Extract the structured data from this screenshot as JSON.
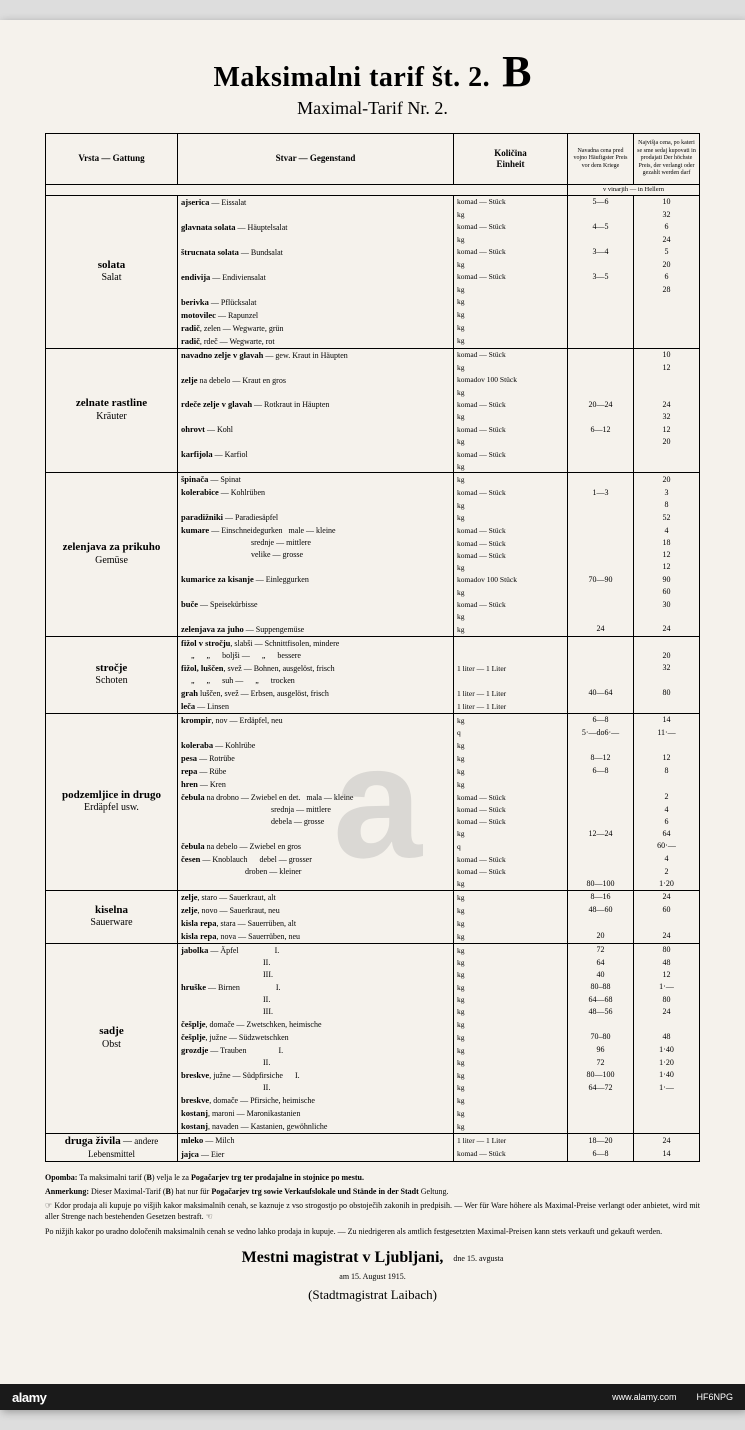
{
  "title": "Maksimalni tarif št. 2.",
  "title_letter": "B",
  "subtitle": "Maximal-Tarif Nr. 2.",
  "columns": {
    "c1": "Vrsta — Gattung",
    "c2": "Stvar — Gegenstand",
    "c3": "Količina\nEinheit",
    "c4": "Navadna cena pred vojno Häufigster Preis vor dem Kriege",
    "c5": "Najvišja cena, po kateri se sme sedaj kupovati in prodajati Der höchste Preis, der verlangt oder gezahlt werden darf",
    "price_unit": "v vinarjih — in Hellern"
  },
  "sections": [
    {
      "cat_sl": "solata",
      "cat_de": "Salat",
      "rows": [
        {
          "item": "<b>ajserica</b> — Eissalat",
          "unit": "komad — Stück",
          "p1": "5—6",
          "p2": "10"
        },
        {
          "item": "",
          "unit": "kg",
          "p1": "",
          "p2": "32"
        },
        {
          "item": "<b>glavnata solata</b> — Häuptelsalat",
          "unit": "komad — Stück",
          "p1": "4—5",
          "p2": "6"
        },
        {
          "item": "",
          "unit": "kg",
          "p1": "",
          "p2": "24"
        },
        {
          "item": "<b>štrucnata solata</b> — Bundsalat",
          "unit": "komad — Stück",
          "p1": "3—4",
          "p2": "5"
        },
        {
          "item": "",
          "unit": "kg",
          "p1": "",
          "p2": "20"
        },
        {
          "item": "<b>endivija</b> — Endiviensalat",
          "unit": "komad — Stück",
          "p1": "3—5",
          "p2": "6"
        },
        {
          "item": "",
          "unit": "kg",
          "p1": "",
          "p2": "28"
        },
        {
          "item": "<b>berivka</b> — Pflücksalat",
          "unit": "kg",
          "p1": "",
          "p2": ""
        },
        {
          "item": "<b>motovilec</b> — Rapunzel",
          "unit": "kg",
          "p1": "",
          "p2": ""
        },
        {
          "item": "<b>radič</b>, zelen — Wegwarte, grün",
          "unit": "kg",
          "p1": "",
          "p2": ""
        },
        {
          "item": "<b>radič</b>, rdeč — Wegwarte, rot",
          "unit": "kg",
          "p1": "",
          "p2": ""
        }
      ]
    },
    {
      "cat_sl": "zelnate rastline",
      "cat_de": "Kräuter",
      "rows": [
        {
          "item": "<b>navadno zelje v glavah</b> — gew. Kraut in Häupten",
          "unit": "komad — Stück",
          "p1": "",
          "p2": "10"
        },
        {
          "item": "",
          "unit": "kg",
          "p1": "",
          "p2": "12"
        },
        {
          "item": "<b>zelje</b> na debelo — Kraut en gros",
          "unit": "komadov 100 Stück",
          "p1": "",
          "p2": ""
        },
        {
          "item": "",
          "unit": "kg",
          "p1": "",
          "p2": ""
        },
        {
          "item": "<b>rdeče zelje v glavah</b> — Rotkraut in Häupten",
          "unit": "komad — Stück",
          "p1": "20—24",
          "p2": "24"
        },
        {
          "item": "",
          "unit": "kg",
          "p1": "",
          "p2": "32"
        },
        {
          "item": "<b>ohrovt</b> — Kohl",
          "unit": "komad — Stück",
          "p1": "6—12",
          "p2": "12"
        },
        {
          "item": "",
          "unit": "kg",
          "p1": "",
          "p2": "20"
        },
        {
          "item": "<b>karfijola</b> — Karfiol",
          "unit": "komad — Stück",
          "p1": "",
          "p2": ""
        },
        {
          "item": "",
          "unit": "kg",
          "p1": "",
          "p2": ""
        }
      ]
    },
    {
      "cat_sl": "zelenjava za prikuho",
      "cat_de": "Gemüse",
      "rows": [
        {
          "item": "<b>špinača</b> — Spinat",
          "unit": "kg",
          "p1": "",
          "p2": "20"
        },
        {
          "item": "<b>kolerabice</b> — Kohlrüben",
          "unit": "komad — Stück",
          "p1": "1—3",
          "p2": "3"
        },
        {
          "item": "",
          "unit": "kg",
          "p1": "",
          "p2": "8"
        },
        {
          "item": "<b>paradižniki</b> — Paradiesäpfel",
          "unit": "kg",
          "p1": "",
          "p2": "52"
        },
        {
          "item": "<b>kumare</b> — Einschneidegurken &nbsp; male — kleine",
          "unit": "komad — Stück",
          "p1": "",
          "p2": "4"
        },
        {
          "item": "&nbsp;&nbsp;&nbsp;&nbsp;&nbsp;&nbsp;&nbsp;&nbsp;&nbsp;&nbsp;&nbsp;&nbsp;&nbsp;&nbsp;&nbsp;&nbsp;&nbsp;&nbsp;&nbsp;&nbsp;&nbsp;&nbsp;&nbsp;&nbsp;&nbsp;&nbsp;&nbsp;&nbsp;&nbsp;&nbsp;&nbsp;&nbsp;&nbsp;&nbsp; srednje — mittlere",
          "unit": "komad — Stück",
          "p1": "",
          "p2": "18"
        },
        {
          "item": "&nbsp;&nbsp;&nbsp;&nbsp;&nbsp;&nbsp;&nbsp;&nbsp;&nbsp;&nbsp;&nbsp;&nbsp;&nbsp;&nbsp;&nbsp;&nbsp;&nbsp;&nbsp;&nbsp;&nbsp;&nbsp;&nbsp;&nbsp;&nbsp;&nbsp;&nbsp;&nbsp;&nbsp;&nbsp;&nbsp;&nbsp;&nbsp;&nbsp;&nbsp; velike — grosse",
          "unit": "komad — Stück",
          "p1": "",
          "p2": "12"
        },
        {
          "item": "",
          "unit": "kg",
          "p1": "",
          "p2": "12"
        },
        {
          "item": "<b>kumarice za kisanje</b> — Einleggurken",
          "unit": "komadov 100 Stück",
          "p1": "70—90",
          "p2": "90"
        },
        {
          "item": "",
          "unit": "kg",
          "p1": "",
          "p2": "60"
        },
        {
          "item": "<b>buče</b> — Speisekürbisse",
          "unit": "komad — Stück",
          "p1": "",
          "p2": "30"
        },
        {
          "item": "",
          "unit": "kg",
          "p1": "",
          "p2": ""
        },
        {
          "item": "<b>zelenjava za juho</b> — Suppengemüse",
          "unit": "kg",
          "p1": "24",
          "p2": "24"
        }
      ]
    },
    {
      "cat_sl": "stročje",
      "cat_de": "Schoten",
      "rows": [
        {
          "item": "<b>fižol v stročju</b>, slabši — Schnittfisolen, mindere",
          "unit": "",
          "p1": "",
          "p2": ""
        },
        {
          "item": "&nbsp;&nbsp;&nbsp;&nbsp; „ &nbsp;&nbsp;&nbsp;&nbsp; „ &nbsp;&nbsp;&nbsp;&nbsp; boljši — &nbsp;&nbsp;&nbsp;&nbsp; „ &nbsp;&nbsp;&nbsp;&nbsp; bessere",
          "unit": "",
          "p1": "",
          "p2": "20"
        },
        {
          "item": "<b>fižol, luščen</b>, svež — Bohnen, ausgelöst, frisch",
          "unit": "1 liter — 1 Liter",
          "p1": "",
          "p2": "32"
        },
        {
          "item": "&nbsp;&nbsp;&nbsp;&nbsp; „ &nbsp;&nbsp;&nbsp;&nbsp; „ &nbsp;&nbsp;&nbsp;&nbsp; suh — &nbsp;&nbsp;&nbsp;&nbsp; „ &nbsp;&nbsp;&nbsp;&nbsp; trocken",
          "unit": "",
          "p1": "",
          "p2": ""
        },
        {
          "item": "<b>grah</b> luščen, svež — Erbsen, ausgelöst, frisch",
          "unit": "1 liter — 1 Liter",
          "p1": "40—64",
          "p2": "80"
        },
        {
          "item": "<b>leča</b> — Linsen",
          "unit": "1 liter — 1 Liter",
          "p1": "",
          "p2": ""
        }
      ]
    },
    {
      "cat_sl": "podzemljice in drugo",
      "cat_de": "Erdäpfel usw.",
      "rows": [
        {
          "item": "<b>krompir</b>, nov — Erdäpfel, neu",
          "unit": "kg",
          "p1": "6—8",
          "p2": "14"
        },
        {
          "item": "",
          "unit": "q",
          "p1": "5·—do6·—",
          "p2": "11·—"
        },
        {
          "item": "<b>koleraba</b> — Kohlrübe",
          "unit": "kg",
          "p1": "",
          "p2": ""
        },
        {
          "item": "<b>pesa</b> — Rotrübe",
          "unit": "kg",
          "p1": "8—12",
          "p2": "12"
        },
        {
          "item": "<b>repa</b> — Rübe",
          "unit": "kg",
          "p1": "6—8",
          "p2": "8"
        },
        {
          "item": "<b>hren</b> — Kren",
          "unit": "kg",
          "p1": "",
          "p2": ""
        },
        {
          "item": "<b>čebula</b> na drobno — Zwiebel en det. &nbsp; mala — kleine",
          "unit": "komad — Stück",
          "p1": "",
          "p2": "2"
        },
        {
          "item": "&nbsp;&nbsp;&nbsp;&nbsp;&nbsp;&nbsp;&nbsp;&nbsp;&nbsp;&nbsp;&nbsp;&nbsp;&nbsp;&nbsp;&nbsp;&nbsp;&nbsp;&nbsp;&nbsp;&nbsp;&nbsp;&nbsp;&nbsp;&nbsp;&nbsp;&nbsp;&nbsp;&nbsp;&nbsp;&nbsp;&nbsp;&nbsp;&nbsp;&nbsp;&nbsp;&nbsp;&nbsp;&nbsp;&nbsp;&nbsp;&nbsp;&nbsp;&nbsp;&nbsp; srednja — mittlere",
          "unit": "komad — Stück",
          "p1": "",
          "p2": "4"
        },
        {
          "item": "&nbsp;&nbsp;&nbsp;&nbsp;&nbsp;&nbsp;&nbsp;&nbsp;&nbsp;&nbsp;&nbsp;&nbsp;&nbsp;&nbsp;&nbsp;&nbsp;&nbsp;&nbsp;&nbsp;&nbsp;&nbsp;&nbsp;&nbsp;&nbsp;&nbsp;&nbsp;&nbsp;&nbsp;&nbsp;&nbsp;&nbsp;&nbsp;&nbsp;&nbsp;&nbsp;&nbsp;&nbsp;&nbsp;&nbsp;&nbsp;&nbsp;&nbsp;&nbsp;&nbsp; debela — grosse",
          "unit": "komad — Stück",
          "p1": "",
          "p2": "6"
        },
        {
          "item": "",
          "unit": "kg",
          "p1": "12—24",
          "p2": "64"
        },
        {
          "item": "<b>čebula</b> na debelo — Zwiebel en gros",
          "unit": "q",
          "p1": "",
          "p2": "60·—"
        },
        {
          "item": "<b>česen</b> — Knoblauch &nbsp;&nbsp;&nbsp;&nbsp; debel — grosser",
          "unit": "komad — Stück",
          "p1": "",
          "p2": "4"
        },
        {
          "item": "&nbsp;&nbsp;&nbsp;&nbsp;&nbsp;&nbsp;&nbsp;&nbsp;&nbsp;&nbsp;&nbsp;&nbsp;&nbsp;&nbsp;&nbsp;&nbsp;&nbsp;&nbsp;&nbsp;&nbsp;&nbsp;&nbsp;&nbsp;&nbsp;&nbsp;&nbsp;&nbsp;&nbsp;&nbsp;&nbsp;&nbsp; droben — kleiner",
          "unit": "komad — Stück",
          "p1": "",
          "p2": "2"
        },
        {
          "item": "",
          "unit": "kg",
          "p1": "80—100",
          "p2": "1·20"
        }
      ]
    },
    {
      "cat_sl": "kiselna",
      "cat_de": "Sauerware",
      "rows": [
        {
          "item": "<b>zelje</b>, staro — Sauerkraut, alt",
          "unit": "kg",
          "p1": "8—16",
          "p2": "24"
        },
        {
          "item": "<b>zelje</b>, novo — Sauerkraut, neu",
          "unit": "kg",
          "p1": "48—60",
          "p2": "60"
        },
        {
          "item": "<b>kisla repa</b>, stara — Sauerrüben, alt",
          "unit": "kg",
          "p1": "",
          "p2": ""
        },
        {
          "item": "<b>kisla repa</b>, nova — Sauerrüben, neu",
          "unit": "kg",
          "p1": "20",
          "p2": "24"
        }
      ]
    },
    {
      "cat_sl": "sadje",
      "cat_de": "Obst",
      "rows": [
        {
          "item": "<b>jabolka</b> — Äpfel &nbsp;&nbsp;&nbsp;&nbsp;&nbsp;&nbsp;&nbsp;&nbsp;&nbsp;&nbsp;&nbsp;&nbsp;&nbsp;&nbsp;&nbsp;&nbsp; I.",
          "unit": "kg",
          "p1": "72",
          "p2": "80"
        },
        {
          "item": "&nbsp;&nbsp;&nbsp;&nbsp;&nbsp;&nbsp;&nbsp;&nbsp;&nbsp;&nbsp;&nbsp;&nbsp;&nbsp;&nbsp;&nbsp;&nbsp;&nbsp;&nbsp;&nbsp;&nbsp;&nbsp;&nbsp;&nbsp;&nbsp;&nbsp;&nbsp;&nbsp;&nbsp;&nbsp;&nbsp;&nbsp;&nbsp;&nbsp;&nbsp;&nbsp;&nbsp;&nbsp;&nbsp;&nbsp;&nbsp; II.",
          "unit": "kg",
          "p1": "64",
          "p2": "48"
        },
        {
          "item": "&nbsp;&nbsp;&nbsp;&nbsp;&nbsp;&nbsp;&nbsp;&nbsp;&nbsp;&nbsp;&nbsp;&nbsp;&nbsp;&nbsp;&nbsp;&nbsp;&nbsp;&nbsp;&nbsp;&nbsp;&nbsp;&nbsp;&nbsp;&nbsp;&nbsp;&nbsp;&nbsp;&nbsp;&nbsp;&nbsp;&nbsp;&nbsp;&nbsp;&nbsp;&nbsp;&nbsp;&nbsp;&nbsp;&nbsp;&nbsp; III.",
          "unit": "kg",
          "p1": "40",
          "p2": "12"
        },
        {
          "item": "<b>hruške</b> — Birnen &nbsp;&nbsp;&nbsp;&nbsp;&nbsp;&nbsp;&nbsp;&nbsp;&nbsp;&nbsp;&nbsp;&nbsp;&nbsp;&nbsp;&nbsp;&nbsp; I.",
          "unit": "kg",
          "p1": "80–88",
          "p2": "1·—"
        },
        {
          "item": "&nbsp;&nbsp;&nbsp;&nbsp;&nbsp;&nbsp;&nbsp;&nbsp;&nbsp;&nbsp;&nbsp;&nbsp;&nbsp;&nbsp;&nbsp;&nbsp;&nbsp;&nbsp;&nbsp;&nbsp;&nbsp;&nbsp;&nbsp;&nbsp;&nbsp;&nbsp;&nbsp;&nbsp;&nbsp;&nbsp;&nbsp;&nbsp;&nbsp;&nbsp;&nbsp;&nbsp;&nbsp;&nbsp;&nbsp;&nbsp; II.",
          "unit": "kg",
          "p1": "64—68",
          "p2": "80"
        },
        {
          "item": "&nbsp;&nbsp;&nbsp;&nbsp;&nbsp;&nbsp;&nbsp;&nbsp;&nbsp;&nbsp;&nbsp;&nbsp;&nbsp;&nbsp;&nbsp;&nbsp;&nbsp;&nbsp;&nbsp;&nbsp;&nbsp;&nbsp;&nbsp;&nbsp;&nbsp;&nbsp;&nbsp;&nbsp;&nbsp;&nbsp;&nbsp;&nbsp;&nbsp;&nbsp;&nbsp;&nbsp;&nbsp;&nbsp;&nbsp;&nbsp; III.",
          "unit": "kg",
          "p1": "48—56",
          "p2": "24"
        },
        {
          "item": "<b>češplje</b>, domače — Zwetschken, heimische",
          "unit": "kg",
          "p1": "",
          "p2": ""
        },
        {
          "item": "<b>češplje</b>, južne — Südzwetschken",
          "unit": "kg",
          "p1": "70–80",
          "p2": "48"
        },
        {
          "item": "<b>grozdje</b> — Trauben &nbsp;&nbsp;&nbsp;&nbsp;&nbsp;&nbsp;&nbsp;&nbsp;&nbsp;&nbsp;&nbsp;&nbsp;&nbsp;&nbsp; I.",
          "unit": "kg",
          "p1": "96",
          "p2": "1·40"
        },
        {
          "item": "&nbsp;&nbsp;&nbsp;&nbsp;&nbsp;&nbsp;&nbsp;&nbsp;&nbsp;&nbsp;&nbsp;&nbsp;&nbsp;&nbsp;&nbsp;&nbsp;&nbsp;&nbsp;&nbsp;&nbsp;&nbsp;&nbsp;&nbsp;&nbsp;&nbsp;&nbsp;&nbsp;&nbsp;&nbsp;&nbsp;&nbsp;&nbsp;&nbsp;&nbsp;&nbsp;&nbsp;&nbsp;&nbsp;&nbsp;&nbsp; II.",
          "unit": "kg",
          "p1": "72",
          "p2": "1·20"
        },
        {
          "item": "<b>breskve</b>, južne — Südpfirsiche &nbsp;&nbsp;&nbsp;&nbsp; I.",
          "unit": "kg",
          "p1": "80—100",
          "p2": "1·40"
        },
        {
          "item": "&nbsp;&nbsp;&nbsp;&nbsp;&nbsp;&nbsp;&nbsp;&nbsp;&nbsp;&nbsp;&nbsp;&nbsp;&nbsp;&nbsp;&nbsp;&nbsp;&nbsp;&nbsp;&nbsp;&nbsp;&nbsp;&nbsp;&nbsp;&nbsp;&nbsp;&nbsp;&nbsp;&nbsp;&nbsp;&nbsp;&nbsp;&nbsp;&nbsp;&nbsp;&nbsp;&nbsp;&nbsp;&nbsp;&nbsp;&nbsp; II.",
          "unit": "kg",
          "p1": "64—72",
          "p2": "1·—"
        },
        {
          "item": "<b>breskve</b>, domače — Pfirsiche, heimische",
          "unit": "kg",
          "p1": "",
          "p2": ""
        },
        {
          "item": "<b>kostanj</b>, maroni — Maronikastanien",
          "unit": "kg",
          "p1": "",
          "p2": ""
        },
        {
          "item": "<b>kostanj</b>, navaden — Kastanien, gewöhnliche",
          "unit": "kg",
          "p1": "",
          "p2": ""
        }
      ]
    },
    {
      "cat_sl": "druga živila",
      "cat_de": "andere Lebensmittel",
      "inline": true,
      "rows": [
        {
          "item": "<b>mleko</b> — Milch",
          "unit": "1 liter — 1 Liter",
          "p1": "18—20",
          "p2": "24"
        },
        {
          "item": "<b>jajca</b> — Eier",
          "unit": "komad — Stück",
          "p1": "6—8",
          "p2": "14"
        }
      ]
    }
  ],
  "notes": [
    "<b>Opomba:</b> Ta maksimalni tarif (<b>B</b>) velja le za <b>Pogačarjev trg ter prodajalne in stojnice po mestu.</b>",
    "<b>Anmerkung:</b> Dieser Maximal-Tarif (<b>B</b>) hat nur für <b>Pogačarjev trg sowie Verkaufslokale und Stände in der Stadt</b> Geltung.",
    "☞ Kdor prodaja ali kupuje po višjih kakor maksimalnih cenah, se kaznuje z vso strogostjo po obstoječih zakonih in predpisih. — Wer für Ware höhere als Maximal-Preise verlangt oder anbietet, wird mit aller Strenge nach bestehenden Gesetzen bestraft. ☜",
    "Po nižjih kakor po uradno določenih maksimalnih cenah se vedno lahko prodaja in kupuje. — Zu niedrigeren als amtlich festgesetzten Maximal-Preisen kann stets verkauft und gekauft werden."
  ],
  "footer": {
    "main": "Mestni magistrat v Ljubljani,",
    "date": "dne 15. avgusta\nam 15. August 1915.",
    "sub": "(Stadtmagistrat Laibach)"
  },
  "watermark": {
    "logo": "alamy",
    "url": "www.alamy.com",
    "imgid": "HF6NPG",
    "center": "a"
  },
  "colors": {
    "paper": "#f5f2ec",
    "ink": "#000000",
    "wm": "rgba(140,140,140,0.25)",
    "bar": "#1a1a1a"
  }
}
